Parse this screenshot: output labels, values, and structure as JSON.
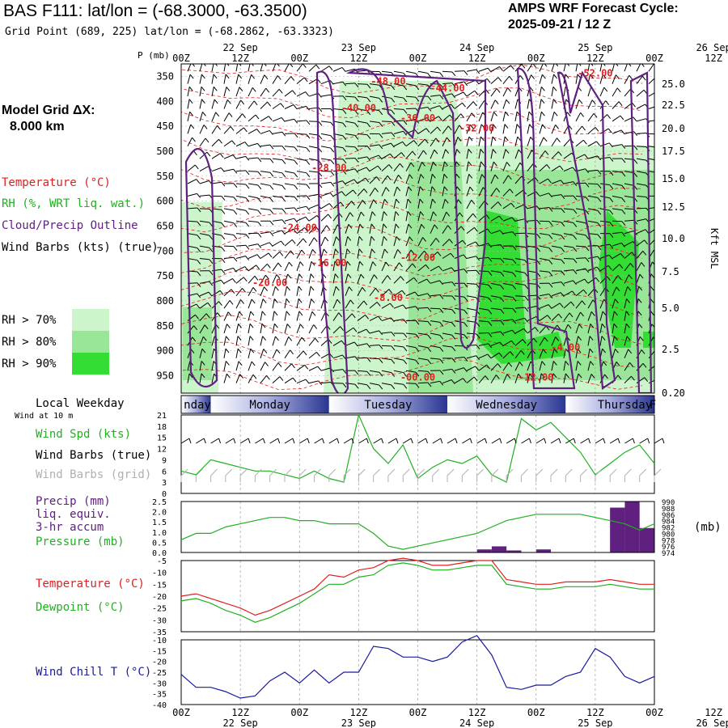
{
  "header": {
    "title": "BAS F111:  lat/lon = (-68.3000, -63.3500)",
    "subtitle": "Grid Point (689, 225) lat/lon = (-68.2862, -63.3323)",
    "cycle_title": "AMPS WRF Forecast Cycle:",
    "cycle_value": "2025-09-21 / 12  Z"
  },
  "legend": {
    "grid_title": "Model Grid ΔX:",
    "grid_value": "8.000 km",
    "temperature": "Temperature (°C)",
    "rh": "RH (%, WRT liq. wat.)",
    "cloud": "Cloud/Precip Outline",
    "wind_barbs": "Wind Barbs (kts) (true)",
    "rh70": "RH > 70%",
    "rh80": "RH > 80%",
    "rh90": "RH > 90%",
    "p_label": "P (mb)",
    "kft_label": "Kft MSL",
    "weekday_title": "Local Weekday",
    "wind10m": "Wind at 10 m",
    "wind_spd": "Wind Spd (kts)",
    "wind_barbs_true": "Wind Barbs (true)",
    "wind_barbs_grid": "Wind Barbs (grid)",
    "precip1": "Precip (mm)",
    "precip2": "liq. equiv.",
    "precip3": "3-hr accum",
    "pressure": "Pressure (mb)",
    "mb_label": "(mb)",
    "temp2": "Temperature (°C)",
    "dewpoint": "Dewpoint (°C)",
    "windchill": "Wind Chill T (°C)"
  },
  "colors": {
    "temp": "#e02020",
    "rh": "#20b020",
    "cloud": "#602080",
    "wind_chill": "#1a1aa0",
    "rh70": "#ccf5cc",
    "rh80": "#99e699",
    "rh90": "#33dd33",
    "grid_barb": "#b0b0b0"
  },
  "chart_data": [
    {
      "type": "time-height cross-section",
      "x_tick_labels": [
        "00Z",
        "12Z",
        "00Z",
        "12Z",
        "00Z",
        "12Z",
        "00Z",
        "12Z",
        "00Z",
        "12Z"
      ],
      "x_date_labels": [
        "22 Sep",
        "23 Sep",
        "24 Sep",
        "25 Sep",
        "26 Sep"
      ],
      "y_pressure_ticks": [
        350,
        400,
        450,
        500,
        550,
        600,
        650,
        700,
        750,
        800,
        850,
        900,
        950
      ],
      "y_height_ticks": [
        "25.0",
        "22.5",
        "20.0",
        "17.5",
        "15.0",
        "12.5",
        "10.0",
        "7.5",
        "5.0",
        "2.5",
        "0.20"
      ],
      "temperature_contour_labels": [
        {
          "text": "-48.00",
          "hour": 42,
          "p": 366
        },
        {
          "text": "-44.00",
          "hour": 54,
          "p": 380
        },
        {
          "text": "-52.00",
          "hour": 84,
          "p": 350
        },
        {
          "text": "-40.00",
          "hour": 36,
          "p": 420
        },
        {
          "text": "-36.00",
          "hour": 48,
          "p": 440
        },
        {
          "text": "-32.00",
          "hour": 60,
          "p": 460
        },
        {
          "text": "-28.00",
          "hour": 30,
          "p": 540
        },
        {
          "text": "-24.00",
          "hour": 24,
          "p": 660
        },
        {
          "text": "-16.00",
          "hour": 30,
          "p": 730
        },
        {
          "text": "-12.00",
          "hour": 48,
          "p": 720
        },
        {
          "text": "-20.00",
          "hour": 18,
          "p": 770
        },
        {
          "text": "-8.00",
          "hour": 42,
          "p": 800
        },
        {
          "text": "-4.00",
          "hour": 78,
          "p": 900
        },
        {
          "text": "-12.00",
          "hour": 72,
          "p": 960
        },
        {
          "text": "-00.00",
          "hour": 48,
          "p": 960
        }
      ]
    },
    {
      "type": "bar",
      "weekday_labels": [
        "nday",
        "Monday",
        "Tuesday",
        "Wednesday",
        "Thursday",
        "F"
      ]
    },
    {
      "type": "line",
      "name": "wind_speed",
      "ylim": [
        0,
        21
      ],
      "y_ticks": [
        0,
        3,
        6,
        9,
        12,
        15,
        18,
        21
      ],
      "hours": [
        0,
        3,
        6,
        9,
        12,
        15,
        18,
        21,
        24,
        27,
        30,
        33,
        36,
        39,
        42,
        45,
        48,
        51,
        54,
        57,
        60,
        63,
        66,
        69,
        72,
        75,
        78,
        81,
        84,
        87,
        90,
        93,
        96
      ],
      "values": [
        6,
        5,
        9,
        8,
        7,
        6,
        6,
        5,
        4,
        6,
        4,
        3,
        21,
        12,
        8,
        13,
        4,
        7,
        9,
        8,
        10,
        5,
        3,
        20,
        17,
        19,
        15,
        11,
        5,
        8,
        11,
        13,
        8
      ]
    },
    {
      "type": "bar+line",
      "name": "precip_pressure",
      "precip_ylim": [
        0,
        2.5
      ],
      "precip_ticks": [
        "0.0",
        "0.5",
        "1.0",
        "1.5",
        "2.0",
        "2.5"
      ],
      "precip_hours": [
        63,
        66,
        69,
        75,
        90,
        93,
        96
      ],
      "precip_values": [
        0.15,
        0.3,
        0.1,
        0.15,
        2.2,
        2.5,
        1.2
      ],
      "pressure_ylim": [
        974,
        990
      ],
      "pressure_ticks": [
        974,
        976,
        978,
        980,
        982,
        984,
        986,
        988,
        990
      ],
      "pressure_hours": [
        0,
        3,
        6,
        9,
        12,
        15,
        18,
        21,
        24,
        27,
        30,
        33,
        36,
        39,
        42,
        45,
        48,
        51,
        54,
        57,
        60,
        63,
        66,
        69,
        72,
        75,
        78,
        81,
        84,
        87,
        90,
        93,
        96
      ],
      "pressure_values": [
        978,
        980,
        980,
        982,
        983,
        984,
        985,
        985,
        984,
        984,
        983,
        983,
        983,
        980,
        976,
        975,
        976,
        977,
        978,
        979,
        980,
        982,
        984,
        985,
        986,
        986,
        986,
        986,
        985,
        984,
        983,
        981,
        983
      ]
    },
    {
      "type": "line",
      "name": "temperature_dewpoint",
      "ylim": [
        -35,
        -5
      ],
      "y_ticks": [
        -35,
        -30,
        -25,
        -20,
        -15,
        -10,
        -5
      ],
      "hours": [
        0,
        3,
        6,
        9,
        12,
        15,
        18,
        21,
        24,
        27,
        30,
        33,
        36,
        39,
        42,
        45,
        48,
        51,
        54,
        57,
        60,
        63,
        66,
        69,
        72,
        75,
        78,
        81,
        84,
        87,
        90,
        93,
        96
      ],
      "temperature": [
        -20,
        -19,
        -21,
        -23,
        -25,
        -28,
        -26,
        -23,
        -20,
        -17,
        -11,
        -12,
        -9,
        -8,
        -5,
        -4,
        -5,
        -7,
        -7,
        -6,
        -5,
        -5,
        -13,
        -14,
        -15,
        -15,
        -14,
        -14,
        -14,
        -13,
        -14,
        -15,
        -15
      ],
      "dewpoint": [
        -22,
        -21,
        -23,
        -26,
        -28,
        -31,
        -29,
        -26,
        -23,
        -19,
        -15,
        -15,
        -12,
        -11,
        -7,
        -6,
        -7,
        -9,
        -9,
        -8,
        -7,
        -7,
        -15,
        -16,
        -17,
        -17,
        -16,
        -16,
        -16,
        -15,
        -16,
        -17,
        -17
      ]
    },
    {
      "type": "line",
      "name": "wind_chill",
      "ylim": [
        -40,
        -10
      ],
      "y_ticks": [
        -40,
        -35,
        -30,
        -25,
        -20,
        -15,
        -10
      ],
      "hours": [
        0,
        3,
        6,
        9,
        12,
        15,
        18,
        21,
        24,
        27,
        30,
        33,
        36,
        39,
        42,
        45,
        48,
        51,
        54,
        57,
        60,
        63,
        66,
        69,
        72,
        75,
        78,
        81,
        84,
        87,
        90,
        93,
        96
      ],
      "values": [
        -26,
        -32,
        -32,
        -34,
        -37,
        -36,
        -29,
        -25,
        -30,
        -24,
        -30,
        -25,
        -25,
        -13,
        -14,
        -18,
        -18,
        -20,
        -18,
        -11,
        -8,
        -17,
        -32,
        -33,
        -31,
        -31,
        -27,
        -25,
        -14,
        -18,
        -27,
        -30,
        -27
      ]
    }
  ]
}
